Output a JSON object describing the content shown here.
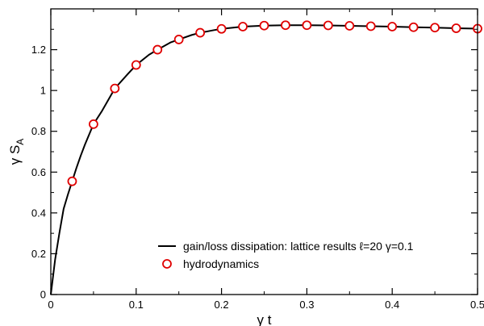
{
  "chart_data": {
    "type": "line",
    "xlabel": "γ t",
    "ylabel": "γ S",
    "ylabel_subscript": "A",
    "xlim": [
      0,
      0.5
    ],
    "ylim": [
      0,
      1.4
    ],
    "xticks": [
      0,
      0.1,
      0.2,
      0.3,
      0.4,
      0.5
    ],
    "xtick_labels": [
      "0",
      "0.1",
      "0.2",
      "0.3",
      "0.4",
      "0.5"
    ],
    "yticks": [
      0,
      0.2,
      0.4,
      0.6,
      0.8,
      1.0,
      1.2
    ],
    "ytick_labels": [
      "0",
      "0.2",
      "0.4",
      "0.6",
      "0.8",
      "1",
      "1.2"
    ],
    "grid": false,
    "legend_position": "bottom-right",
    "series": [
      {
        "name": "gain/loss dissipation: lattice results ℓ=20 γ=0.1",
        "style": "line",
        "color": "#000000",
        "x": [
          0,
          0.005,
          0.01,
          0.015,
          0.02,
          0.025,
          0.03,
          0.035,
          0.04,
          0.05,
          0.06,
          0.075,
          0.09,
          0.1,
          0.115,
          0.125,
          0.14,
          0.15,
          0.165,
          0.175,
          0.19,
          0.2,
          0.225,
          0.25,
          0.275,
          0.3,
          0.325,
          0.35,
          0.375,
          0.4,
          0.425,
          0.45,
          0.475,
          0.5
        ],
        "y": [
          0,
          0.17,
          0.3,
          0.42,
          0.49,
          0.555,
          0.62,
          0.68,
          0.735,
          0.835,
          0.9,
          1.01,
          1.08,
          1.125,
          1.175,
          1.2,
          1.235,
          1.25,
          1.272,
          1.283,
          1.295,
          1.302,
          1.313,
          1.318,
          1.32,
          1.32,
          1.319,
          1.317,
          1.315,
          1.313,
          1.31,
          1.308,
          1.305,
          1.303
        ]
      },
      {
        "name": "hydrodynamics",
        "style": "markers",
        "color": "#e00000",
        "x": [
          0.025,
          0.05,
          0.075,
          0.1,
          0.125,
          0.15,
          0.175,
          0.2,
          0.225,
          0.25,
          0.275,
          0.3,
          0.325,
          0.35,
          0.375,
          0.4,
          0.425,
          0.45,
          0.475,
          0.5
        ],
        "y": [
          0.555,
          0.835,
          1.01,
          1.125,
          1.2,
          1.25,
          1.283,
          1.302,
          1.313,
          1.318,
          1.32,
          1.32,
          1.319,
          1.317,
          1.315,
          1.313,
          1.31,
          1.308,
          1.305,
          1.303
        ]
      }
    ]
  }
}
